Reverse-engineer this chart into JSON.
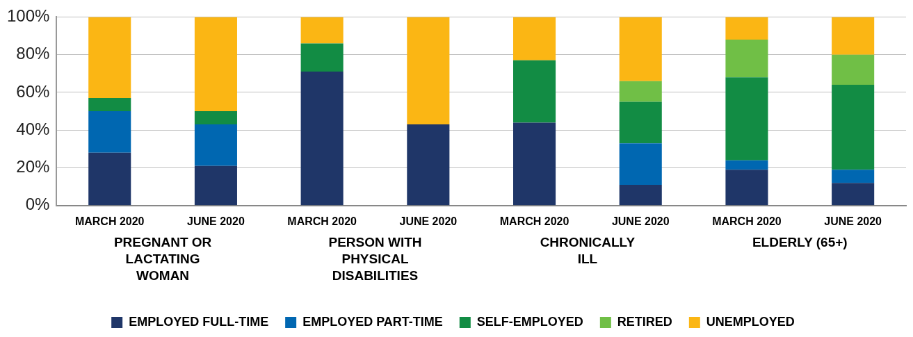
{
  "chart_data": {
    "type": "bar",
    "stacked": true,
    "categories": [
      "MARCH 2020",
      "JUNE 2020",
      "MARCH 2020",
      "JUNE 2020",
      "MARCH 2020",
      "JUNE 2020",
      "MARCH 2020",
      "JUNE 2020"
    ],
    "annotations": [
      "PREGNANT OR LACTATING WOMAN",
      "PERSON WITH PHYSICAL DISABILITIES",
      "CHRONICALLY ILL",
      "ELDERLY (65+)"
    ],
    "series": [
      {
        "name": "EMPLOYED FULL-TIME",
        "color": "#1f3668",
        "values": [
          28,
          21,
          71,
          43,
          44,
          11,
          19,
          12
        ]
      },
      {
        "name": "EMPLOYED PART-TIME",
        "color": "#0067b1",
        "values": [
          22,
          22,
          0,
          0,
          0,
          22,
          5,
          7
        ]
      },
      {
        "name": "SELF-EMPLOYED",
        "color": "#128c44",
        "values": [
          7,
          7,
          15,
          0,
          33,
          22,
          44,
          45
        ]
      },
      {
        "name": "RETIRED",
        "color": "#70bf46",
        "values": [
          0,
          0,
          0,
          0,
          0,
          11,
          20,
          16
        ]
      },
      {
        "name": "UNEMPLOYED",
        "color": "#fbb614",
        "values": [
          43,
          50,
          14,
          57,
          23,
          34,
          12,
          20
        ]
      }
    ],
    "ylim": [
      0,
      100
    ],
    "yticks": [
      {
        "value": 0,
        "label": "0%"
      },
      {
        "value": 20,
        "label": "20%"
      },
      {
        "value": 40,
        "label": "40%"
      },
      {
        "value": 60,
        "label": "60%"
      },
      {
        "value": 80,
        "label": "80%"
      },
      {
        "value": 100,
        "label": "100%"
      }
    ],
    "grid": "y",
    "legend": "bottom"
  }
}
